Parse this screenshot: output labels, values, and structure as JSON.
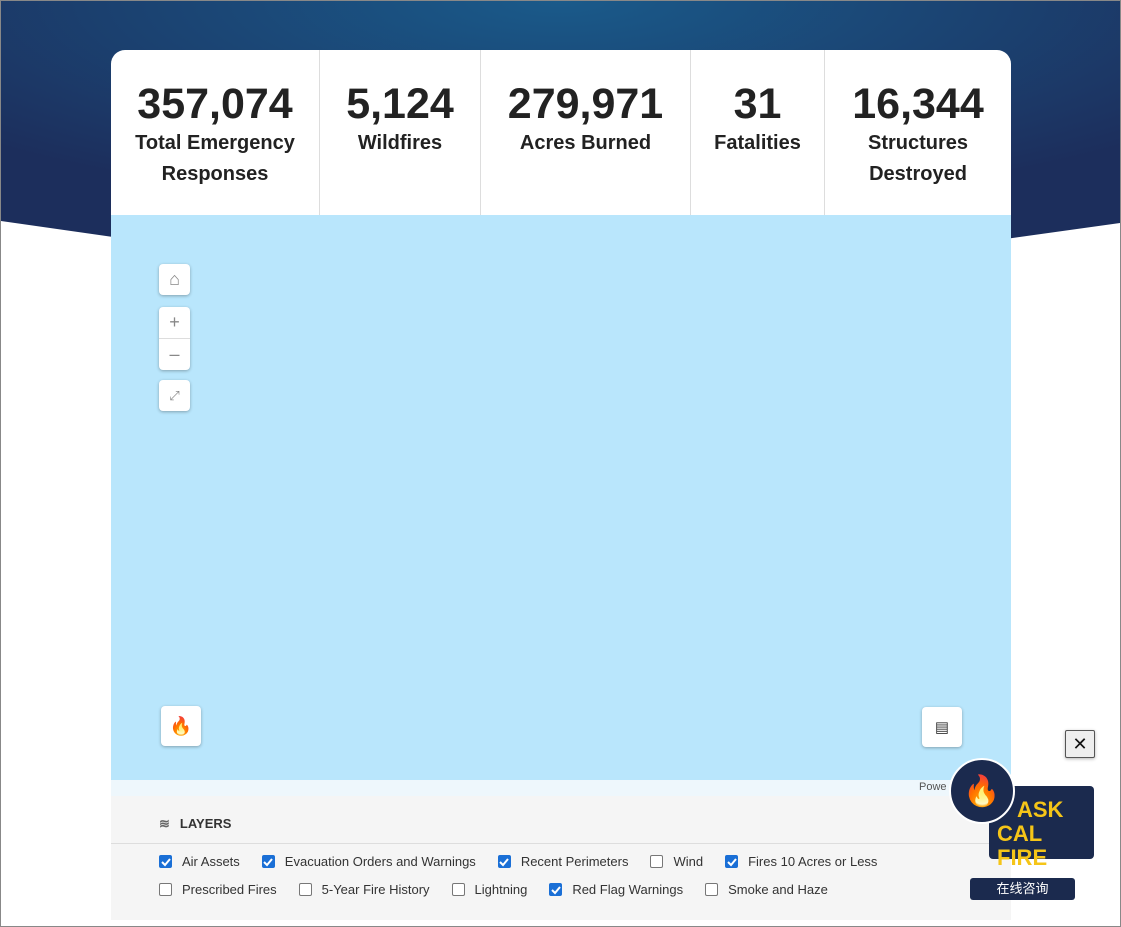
{
  "stats": [
    {
      "value": "357,074",
      "label": "Total Emergency Responses"
    },
    {
      "value": "5,124",
      "label": "Wildfires"
    },
    {
      "value": "279,971",
      "label": "Acres Burned"
    },
    {
      "value": "31",
      "label": "Fatalities"
    },
    {
      "value": "16,344",
      "label": "Structures Destroyed"
    }
  ],
  "map": {
    "attribution": "Powe"
  },
  "layers": {
    "title": "LAYERS",
    "rows": [
      [
        {
          "label": "Air Assets",
          "checked": true
        },
        {
          "label": "Evacuation Orders and Warnings",
          "checked": true
        },
        {
          "label": "Recent Perimeters",
          "checked": true
        },
        {
          "label": "Wind",
          "checked": false
        },
        {
          "label": "Fires 10 Acres or Less",
          "checked": true
        }
      ],
      [
        {
          "label": "Prescribed Fires",
          "checked": false
        },
        {
          "label": "5-Year Fire History",
          "checked": false
        },
        {
          "label": "Lightning",
          "checked": false
        },
        {
          "label": "Red Flag Warnings",
          "checked": true
        },
        {
          "label": "Smoke and Haze",
          "checked": false
        }
      ]
    ]
  },
  "chat": {
    "line1": "ASK",
    "line2": "CAL FIRE",
    "button": "在线咨询"
  }
}
